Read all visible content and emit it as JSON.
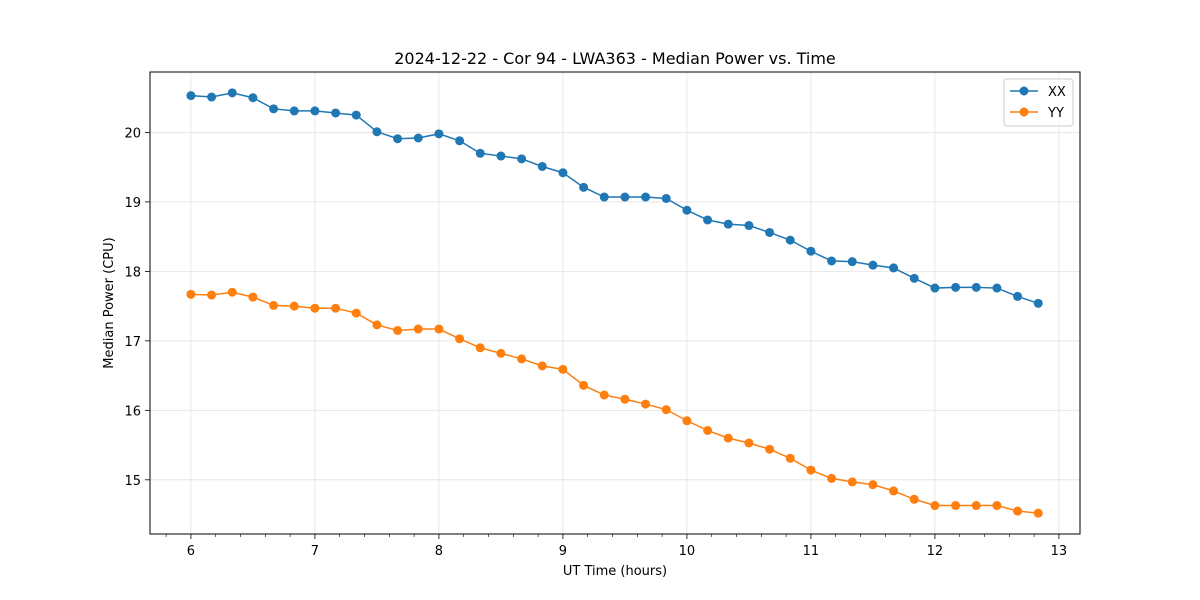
{
  "chart_data": {
    "type": "line",
    "title": "2024-12-22 - Cor 94 - LWA363 - Median Power vs. Time",
    "xlabel": "UT Time (hours)",
    "ylabel": "Median Power (CPU)",
    "xlim": [
      5.67,
      13.17
    ],
    "ylim": [
      14.22,
      20.87
    ],
    "xticks": [
      6,
      7,
      8,
      9,
      10,
      11,
      12,
      13
    ],
    "xtick_labels": [
      "6",
      "7",
      "8",
      "9",
      "10",
      "11",
      "12",
      "13"
    ],
    "yticks": [
      15,
      16,
      17,
      18,
      19,
      20
    ],
    "ytick_labels": [
      "15",
      "16",
      "17",
      "18",
      "19",
      "20"
    ],
    "grid": true,
    "legend_position": "top-right",
    "x": [
      6.0,
      6.1667,
      6.3333,
      6.5,
      6.6667,
      6.8333,
      7.0,
      7.1667,
      7.3333,
      7.5,
      7.6667,
      7.8333,
      8.0,
      8.1667,
      8.3333,
      8.5,
      8.6667,
      8.8333,
      9.0,
      9.1667,
      9.3333,
      9.5,
      9.6667,
      9.8333,
      10.0,
      10.1667,
      10.3333,
      10.5,
      10.6667,
      10.8333,
      11.0,
      11.1667,
      11.3333,
      11.5,
      11.6667,
      11.8333,
      12.0,
      12.1667,
      12.3333,
      12.5,
      12.6667,
      12.8333
    ],
    "series": [
      {
        "name": "XX",
        "color": "#1f77b4",
        "values": [
          20.53,
          20.51,
          20.57,
          20.5,
          20.34,
          20.31,
          20.31,
          20.28,
          20.25,
          20.01,
          19.91,
          19.92,
          19.98,
          19.88,
          19.7,
          19.66,
          19.62,
          19.51,
          19.42,
          19.21,
          19.07,
          19.07,
          19.07,
          19.05,
          18.88,
          18.74,
          18.68,
          18.66,
          18.56,
          18.45,
          18.29,
          18.15,
          18.14,
          18.09,
          18.05,
          17.9,
          17.76,
          17.77,
          17.77,
          17.76,
          17.64,
          17.54
        ]
      },
      {
        "name": "YY",
        "color": "#ff7f0e",
        "values": [
          17.67,
          17.66,
          17.7,
          17.63,
          17.51,
          17.5,
          17.47,
          17.47,
          17.4,
          17.23,
          17.15,
          17.17,
          17.17,
          17.03,
          16.9,
          16.82,
          16.74,
          16.64,
          16.59,
          16.36,
          16.22,
          16.16,
          16.09,
          16.01,
          15.85,
          15.71,
          15.6,
          15.53,
          15.44,
          15.31,
          15.14,
          15.02,
          14.97,
          14.93,
          14.84,
          14.72,
          14.63,
          14.63,
          14.63,
          14.63,
          14.55,
          14.52
        ]
      }
    ]
  }
}
